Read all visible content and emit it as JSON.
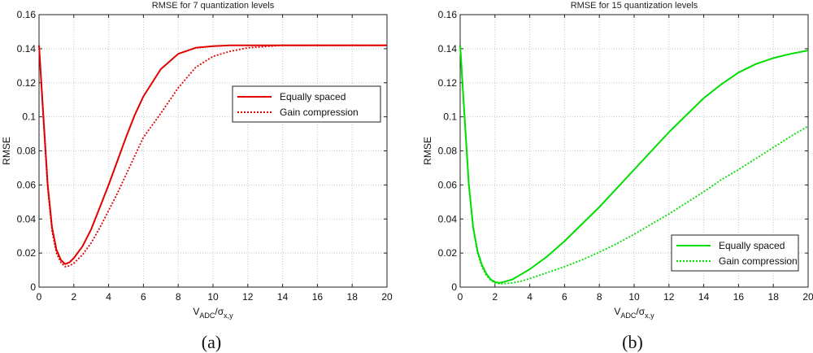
{
  "chart_data": [
    {
      "type": "line",
      "title": "RMSE for 7 quantization levels",
      "ylabel": "RMSE",
      "xlabel_main": "V",
      "xlabel_sub1": "ADC",
      "xlabel_mid": "/σ",
      "xlabel_sub2": "x,y",
      "caption": "(a)",
      "xlim": [
        0,
        20
      ],
      "ylim": [
        0,
        0.16
      ],
      "xticks": [
        "0",
        "2",
        "4",
        "6",
        "8",
        "10",
        "12",
        "14",
        "16",
        "18",
        "20"
      ],
      "yticks": [
        "0",
        "0.02",
        "0.04",
        "0.06",
        "0.08",
        "0.1",
        "0.12",
        "0.14",
        "0.16"
      ],
      "grid": true,
      "legend_position": "upper-right",
      "color": "#e00000",
      "series": [
        {
          "name": "Equally spaced",
          "style": "solid",
          "x": [
            0,
            0.25,
            0.5,
            0.75,
            1.0,
            1.25,
            1.5,
            1.75,
            2.0,
            2.5,
            3,
            3.5,
            4,
            4.5,
            5,
            5.5,
            6,
            7,
            8,
            9,
            10,
            11,
            12,
            14,
            16,
            18,
            20
          ],
          "y": [
            0.142,
            0.1,
            0.06,
            0.035,
            0.022,
            0.016,
            0.0135,
            0.0145,
            0.017,
            0.024,
            0.034,
            0.047,
            0.06,
            0.074,
            0.088,
            0.101,
            0.112,
            0.128,
            0.137,
            0.1405,
            0.1415,
            0.142,
            0.142,
            0.142,
            0.142,
            0.142,
            0.142
          ]
        },
        {
          "name": "Gain compression",
          "style": "dotted",
          "x": [
            0,
            0.25,
            0.5,
            0.75,
            1.0,
            1.25,
            1.5,
            1.75,
            2.0,
            2.5,
            3,
            3.5,
            4,
            4.5,
            5,
            5.5,
            6,
            7,
            8,
            9,
            10,
            11,
            12,
            14,
            16,
            18,
            20
          ],
          "y": [
            0.142,
            0.098,
            0.058,
            0.033,
            0.02,
            0.0145,
            0.012,
            0.0125,
            0.014,
            0.019,
            0.026,
            0.035,
            0.045,
            0.055,
            0.066,
            0.077,
            0.088,
            0.102,
            0.117,
            0.129,
            0.1355,
            0.1385,
            0.1405,
            0.142,
            0.142,
            0.142,
            0.142
          ]
        }
      ]
    },
    {
      "type": "line",
      "title": "RMSE for 15 quantization levels",
      "ylabel": "RMSE",
      "xlabel_main": "V",
      "xlabel_sub1": "ADC",
      "xlabel_mid": "/σ",
      "xlabel_sub2": "x,y",
      "caption": "(b)",
      "xlim": [
        0,
        20
      ],
      "ylim": [
        0,
        0.16
      ],
      "xticks": [
        "0",
        "2",
        "4",
        "6",
        "8",
        "10",
        "12",
        "14",
        "16",
        "18",
        "20"
      ],
      "yticks": [
        "0",
        "0.02",
        "0.04",
        "0.06",
        "0.08",
        "0.1",
        "0.12",
        "0.14",
        "0.16"
      ],
      "grid": true,
      "legend_position": "lower-right",
      "color": "#00dd00",
      "series": [
        {
          "name": "Equally spaced",
          "style": "solid",
          "x": [
            0,
            0.25,
            0.5,
            0.75,
            1.0,
            1.25,
            1.5,
            1.75,
            2.0,
            2.25,
            2.5,
            3,
            3.5,
            4,
            5,
            6,
            7,
            8,
            9,
            10,
            11,
            12,
            13,
            14,
            15,
            16,
            17,
            18,
            19,
            20
          ],
          "y": [
            0.142,
            0.1,
            0.06,
            0.035,
            0.021,
            0.013,
            0.008,
            0.0045,
            0.003,
            0.0025,
            0.003,
            0.0045,
            0.0075,
            0.0105,
            0.018,
            0.027,
            0.037,
            0.047,
            0.058,
            0.069,
            0.08,
            0.091,
            0.101,
            0.111,
            0.119,
            0.126,
            0.131,
            0.1345,
            0.137,
            0.139
          ]
        },
        {
          "name": "Gain compression",
          "style": "dotted",
          "x": [
            0,
            0.25,
            0.5,
            0.75,
            1.0,
            1.25,
            1.5,
            1.75,
            2.0,
            2.25,
            2.5,
            3,
            3.5,
            4,
            5,
            6,
            7,
            8,
            9,
            10,
            11,
            12,
            13,
            14,
            15,
            16,
            17,
            18,
            19,
            20
          ],
          "y": [
            0.142,
            0.1,
            0.06,
            0.035,
            0.02,
            0.012,
            0.007,
            0.004,
            0.0025,
            0.002,
            0.002,
            0.0025,
            0.0035,
            0.005,
            0.0085,
            0.012,
            0.016,
            0.0205,
            0.0255,
            0.031,
            0.037,
            0.043,
            0.0495,
            0.056,
            0.063,
            0.069,
            0.0755,
            0.082,
            0.0885,
            0.0945
          ]
        }
      ]
    }
  ]
}
